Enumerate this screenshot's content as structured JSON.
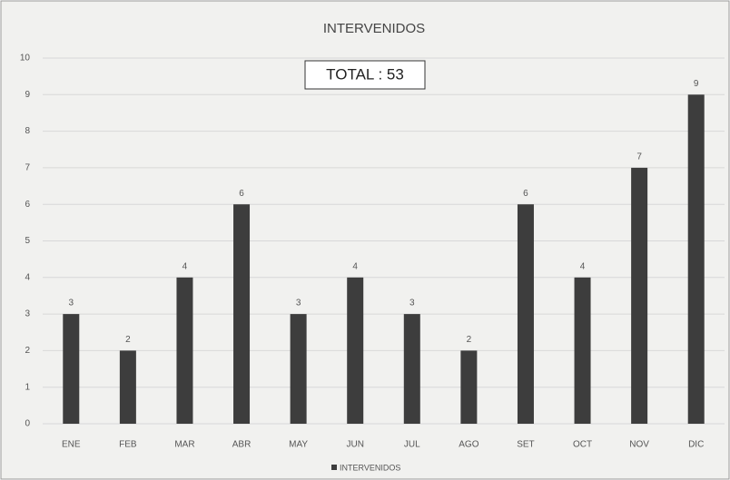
{
  "chart_data": {
    "type": "bar",
    "title": "INTERVENIDOS",
    "annotation": "TOTAL : 53",
    "categories": [
      "ENE",
      "FEB",
      "MAR",
      "ABR",
      "MAY",
      "JUN",
      "JUL",
      "AGO",
      "SET",
      "OCT",
      "NOV",
      "DIC"
    ],
    "series": [
      {
        "name": "INTERVENIDOS",
        "color": "#3d3d3d",
        "values": [
          3,
          2,
          4,
          6,
          3,
          4,
          3,
          2,
          6,
          4,
          7,
          9
        ]
      }
    ],
    "ylim": [
      0,
      10
    ],
    "yticks": [
      0,
      1,
      2,
      3,
      4,
      5,
      6,
      7,
      8,
      9,
      10
    ],
    "grid": true,
    "legend": "bottom",
    "data_labels": true
  }
}
